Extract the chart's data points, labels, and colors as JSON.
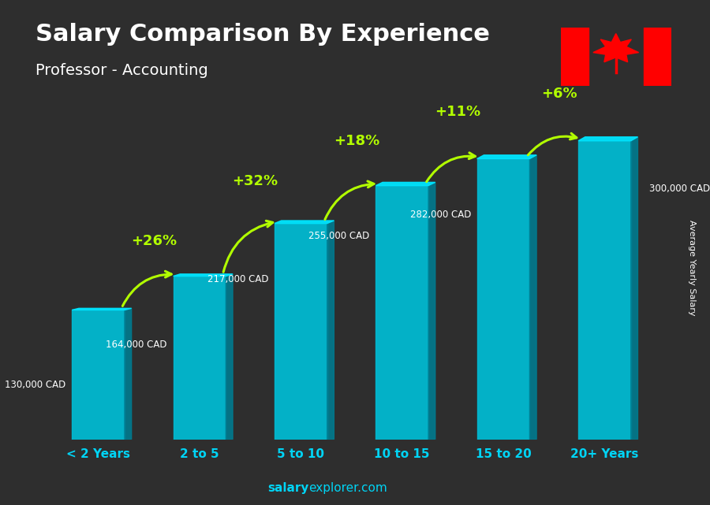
{
  "title": "Salary Comparison By Experience",
  "subtitle": "Professor - Accounting",
  "categories": [
    "< 2 Years",
    "2 to 5",
    "5 to 10",
    "10 to 15",
    "15 to 20",
    "20+ Years"
  ],
  "values": [
    130000,
    164000,
    217000,
    255000,
    282000,
    300000
  ],
  "pct_changes": [
    "+26%",
    "+32%",
    "+18%",
    "+11%",
    "+6%"
  ],
  "salary_labels": [
    "130,000 CAD",
    "164,000 CAD",
    "217,000 CAD",
    "255,000 CAD",
    "282,000 CAD",
    "300,000 CAD"
  ],
  "bar_color_face": "#00bcd4",
  "bar_color_top": "#00e5ff",
  "bar_color_side": "#007c91",
  "pct_color": "#b2ff00",
  "label_color": "#ffffff",
  "title_color": "#ffffff",
  "subtitle_color": "#ffffff",
  "bg_color": "#2e2e2e",
  "footer_salary_color": "#00d4f5",
  "footer_explorer_color": "#00d4f5",
  "ylabel": "Average Yearly Salary",
  "ylim": [
    0,
    340000
  ],
  "footer_bold": "salary",
  "footer_normal": "explorer.com"
}
